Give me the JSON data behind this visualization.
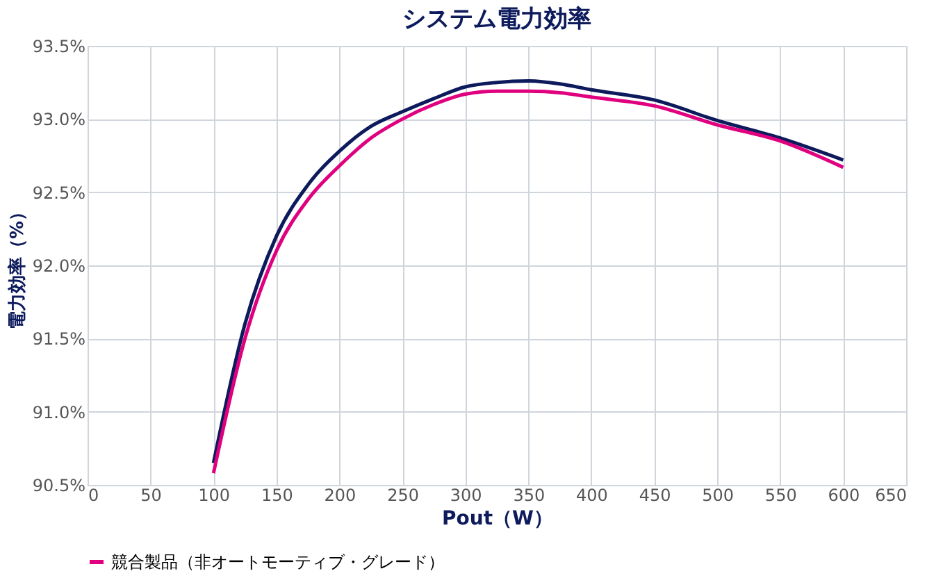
{
  "chart_data": {
    "type": "line",
    "title": "システム電力効率",
    "xlabel": "Pout（W）",
    "ylabel": "電力効率（%）",
    "x": [
      100,
      125,
      150,
      175,
      200,
      225,
      250,
      275,
      300,
      325,
      350,
      375,
      400,
      450,
      500,
      550,
      600
    ],
    "series": [
      {
        "color": "#0d1a5c",
        "values": [
          90.65,
          91.6,
          92.2,
          92.55,
          92.78,
          92.95,
          93.05,
          93.14,
          93.22,
          93.25,
          93.26,
          93.24,
          93.2,
          93.13,
          92.99,
          92.87,
          92.72
        ]
      },
      {
        "name": "競合製品（非オートモーティブ・グレード）",
        "color": "#e0007f",
        "values": [
          90.58,
          91.5,
          92.1,
          92.45,
          92.68,
          92.87,
          93.0,
          93.1,
          93.17,
          93.19,
          93.19,
          93.18,
          93.15,
          93.09,
          92.96,
          92.85,
          92.67
        ]
      }
    ],
    "xlim": [
      0,
      650
    ],
    "xticks": [
      0,
      50,
      100,
      150,
      200,
      250,
      300,
      350,
      400,
      450,
      500,
      550,
      600,
      650
    ],
    "ylim": [
      90.5,
      93.5
    ],
    "yticks": [
      {
        "value": 90.5,
        "label": "90.5%"
      },
      {
        "value": 91.0,
        "label": "91.0%"
      },
      {
        "value": 91.5,
        "label": "91.5%"
      },
      {
        "value": 92.0,
        "label": "92.0%"
      },
      {
        "value": 92.5,
        "label": "92.5%"
      },
      {
        "value": 93.0,
        "label": "93.0%"
      },
      {
        "value": 93.5,
        "label": "93.5%"
      }
    ],
    "grid": true,
    "legend": "bottom",
    "line_style": "solid",
    "marker": "none"
  }
}
